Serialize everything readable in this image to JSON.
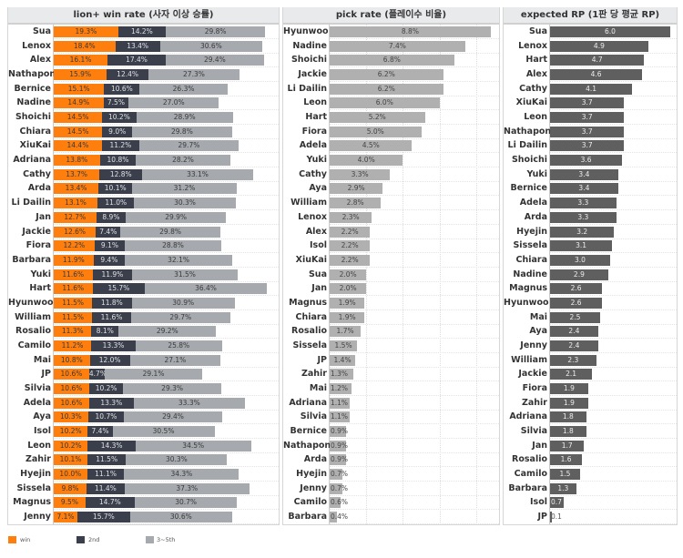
{
  "chart_data": [
    {
      "type": "bar",
      "stacked": true,
      "orientation": "horizontal",
      "title": "lion+ win rate (사자 이상 승률)",
      "categories": [
        "Sua",
        "Lenox",
        "Alex",
        "Nathapon",
        "Bernice",
        "Nadine",
        "Shoichi",
        "Chiara",
        "XiuKai",
        "Adriana",
        "Cathy",
        "Arda",
        "Li Dailin",
        "Jan",
        "Jackie",
        "Fiora",
        "Barbara",
        "Yuki",
        "Hart",
        "Hyunwoo",
        "William",
        "Rosalio",
        "Camilo",
        "Mai",
        "JP",
        "Silvia",
        "Adela",
        "Aya",
        "Isol",
        "Leon",
        "Zahir",
        "Hyejin",
        "Sissela",
        "Magnus",
        "Jenny"
      ],
      "series": [
        {
          "name": "win",
          "color": "#ff7f0e",
          "values": [
            19.3,
            18.4,
            16.1,
            15.9,
            15.1,
            14.9,
            14.5,
            14.5,
            14.4,
            13.8,
            13.7,
            13.4,
            13.1,
            12.7,
            12.6,
            12.2,
            11.9,
            11.6,
            11.6,
            11.5,
            11.5,
            11.3,
            11.2,
            10.8,
            10.6,
            10.6,
            10.6,
            10.3,
            10.2,
            10.2,
            10.1,
            10.0,
            9.8,
            9.5,
            7.1
          ]
        },
        {
          "name": "2nd",
          "color": "#3b3f4c",
          "values": [
            14.2,
            13.4,
            17.4,
            12.4,
            10.6,
            7.5,
            10.2,
            9.0,
            11.2,
            10.8,
            12.8,
            10.1,
            11.0,
            8.9,
            7.4,
            9.1,
            9.4,
            11.9,
            15.7,
            11.8,
            11.6,
            8.1,
            13.3,
            12.0,
            4.7,
            10.2,
            13.3,
            10.7,
            7.4,
            14.3,
            11.5,
            11.1,
            11.4,
            14.7,
            15.7
          ]
        },
        {
          "name": "3~5th",
          "color": "#a6a9ad",
          "values": [
            29.8,
            30.6,
            29.4,
            27.3,
            26.3,
            27.0,
            28.9,
            29.8,
            29.7,
            28.2,
            33.1,
            31.2,
            30.3,
            29.9,
            29.8,
            28.8,
            32.1,
            31.5,
            36.4,
            30.9,
            29.7,
            29.2,
            25.8,
            27.1,
            29.1,
            29.3,
            33.3,
            29.4,
            30.5,
            34.5,
            30.3,
            34.3,
            37.3,
            30.7,
            30.6
          ]
        }
      ],
      "legend": "bottom-left",
      "value_suffix": "%"
    },
    {
      "type": "bar",
      "orientation": "horizontal",
      "title": "pick rate (플레이수 비율)",
      "categories": [
        "Hyunwoo",
        "Nadine",
        "Shoichi",
        "Jackie",
        "Li Dailin",
        "Leon",
        "Hart",
        "Fiora",
        "Adela",
        "Yuki",
        "Cathy",
        "Aya",
        "William",
        "Lenox",
        "Alex",
        "Isol",
        "XiuKai",
        "Sua",
        "Jan",
        "Magnus",
        "Chiara",
        "Rosalio",
        "Sissela",
        "JP",
        "Zahir",
        "Mai",
        "Adriana",
        "Silvia",
        "Bernice",
        "Nathapon",
        "Arda",
        "Hyejin",
        "Jenny",
        "Camilo",
        "Barbara"
      ],
      "values": [
        8.8,
        7.4,
        6.8,
        6.2,
        6.2,
        6.0,
        5.2,
        5.0,
        4.5,
        4.0,
        3.3,
        2.9,
        2.8,
        2.3,
        2.2,
        2.2,
        2.2,
        2.0,
        2.0,
        1.9,
        1.9,
        1.7,
        1.5,
        1.4,
        1.3,
        1.2,
        1.1,
        1.1,
        0.9,
        0.9,
        0.9,
        0.7,
        0.7,
        0.6,
        0.4
      ],
      "color": "#b0b0b0",
      "value_suffix": "%",
      "xlim": [
        0,
        10
      ],
      "grid": true
    },
    {
      "type": "bar",
      "orientation": "horizontal",
      "title": "expected RP (1판 당 평균 RP)",
      "categories": [
        "Sua",
        "Lenox",
        "Hart",
        "Alex",
        "Cathy",
        "XiuKai",
        "Leon",
        "Nathapon",
        "Li Dailin",
        "Shoichi",
        "Yuki",
        "Bernice",
        "Adela",
        "Arda",
        "Hyejin",
        "Sissela",
        "Chiara",
        "Nadine",
        "Magnus",
        "Hyunwoo",
        "Mai",
        "Aya",
        "Jenny",
        "William",
        "Jackie",
        "Fiora",
        "Zahir",
        "Adriana",
        "Silvia",
        "Jan",
        "Rosalio",
        "Camilo",
        "Barbara",
        "Isol",
        "JP"
      ],
      "values": [
        6.0,
        4.9,
        4.7,
        4.6,
        4.1,
        3.7,
        3.7,
        3.7,
        3.7,
        3.6,
        3.4,
        3.4,
        3.3,
        3.3,
        3.2,
        3.1,
        3.0,
        2.9,
        2.6,
        2.6,
        2.5,
        2.4,
        2.4,
        2.3,
        2.1,
        1.9,
        1.9,
        1.8,
        1.8,
        1.7,
        1.6,
        1.5,
        1.3,
        0.7,
        0.1
      ],
      "color": "#5f5f5f",
      "value_suffix": ""
    }
  ]
}
